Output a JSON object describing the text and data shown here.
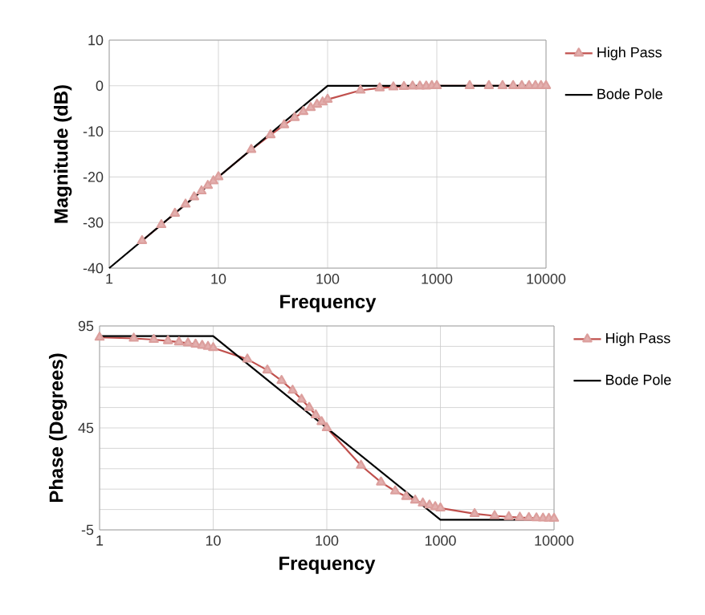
{
  "chart_data": [
    {
      "type": "line",
      "xlabel": "Frequency",
      "ylabel": "Magnitude (dB)",
      "log": "x",
      "grid": true,
      "legend": "right",
      "xlim": [
        1,
        10000
      ],
      "xticks": [
        1,
        10,
        100,
        1000,
        10000
      ],
      "ylim": [
        -40,
        10
      ],
      "yticks": [
        -40,
        -30,
        -20,
        -10,
        0,
        10
      ],
      "series": [
        {
          "name": "High Pass",
          "color": "#c0504d",
          "marker": "triangle",
          "x": [
            2,
            3,
            4,
            5,
            6,
            7,
            8,
            9,
            10,
            20,
            30,
            40,
            50,
            60,
            70,
            80,
            90,
            100,
            200,
            300,
            400,
            500,
            600,
            700,
            800,
            900,
            1000,
            2000,
            3000,
            4000,
            5000,
            6000,
            7000,
            8000,
            9000,
            10000
          ],
          "values": [
            -34,
            -30.5,
            -28,
            -26,
            -24.4,
            -23.1,
            -21.9,
            -20.9,
            -20,
            -14,
            -10.8,
            -8.6,
            -7,
            -5.7,
            -4.8,
            -4.1,
            -3.6,
            -3,
            -1,
            -0.5,
            -0.3,
            -0.2,
            -0.1,
            -0.1,
            -0.1,
            0,
            0,
            0,
            0,
            0,
            0,
            0,
            0,
            0,
            0,
            0
          ]
        },
        {
          "name": "Bode Pole",
          "color": "#000000",
          "marker": "none",
          "x": [
            1,
            100,
            10000
          ],
          "values": [
            -40,
            0,
            0
          ]
        }
      ]
    },
    {
      "type": "line",
      "xlabel": "Frequency",
      "ylabel": "Phase (Degrees)",
      "log": "x",
      "grid": true,
      "legend": "right",
      "xlim": [
        1,
        10000
      ],
      "xticks": [
        1,
        10,
        100,
        1000,
        10000
      ],
      "ylim": [
        -5,
        95
      ],
      "yticks": [
        -5,
        {
          "value": 5,
          "label": null
        },
        {
          "value": 15,
          "label": null
        },
        {
          "value": 25,
          "label": null
        },
        {
          "value": 35,
          "label": null
        },
        45,
        {
          "value": 55,
          "label": null
        },
        {
          "value": 65,
          "label": null
        },
        {
          "value": 75,
          "label": null
        },
        {
          "value": 85,
          "label": null
        },
        95
      ],
      "series": [
        {
          "name": "High Pass",
          "color": "#c0504d",
          "marker": "triangle",
          "x": [
            1,
            2,
            3,
            4,
            5,
            6,
            7,
            8,
            9,
            10,
            20,
            30,
            40,
            50,
            60,
            70,
            80,
            90,
            100,
            200,
            300,
            400,
            500,
            600,
            700,
            800,
            900,
            1000,
            2000,
            3000,
            4000,
            5000,
            6000,
            7000,
            8000,
            9000,
            10000
          ],
          "values": [
            89.4,
            88.9,
            88.3,
            87.7,
            87.1,
            86.6,
            86,
            85.4,
            84.9,
            84.3,
            78.7,
            73.3,
            68.2,
            63.4,
            59,
            55,
            51.3,
            48,
            45,
            26.6,
            18.4,
            14,
            11.3,
            9.5,
            8.1,
            7.1,
            6.3,
            5.7,
            2.9,
            1.9,
            1.4,
            1.1,
            1,
            0.8,
            0.7,
            0.6,
            0.6
          ]
        },
        {
          "name": "Bode Pole",
          "color": "#000000",
          "marker": "none",
          "x": [
            1,
            10,
            1000,
            10000
          ],
          "values": [
            90,
            90,
            0,
            0
          ]
        }
      ]
    }
  ]
}
